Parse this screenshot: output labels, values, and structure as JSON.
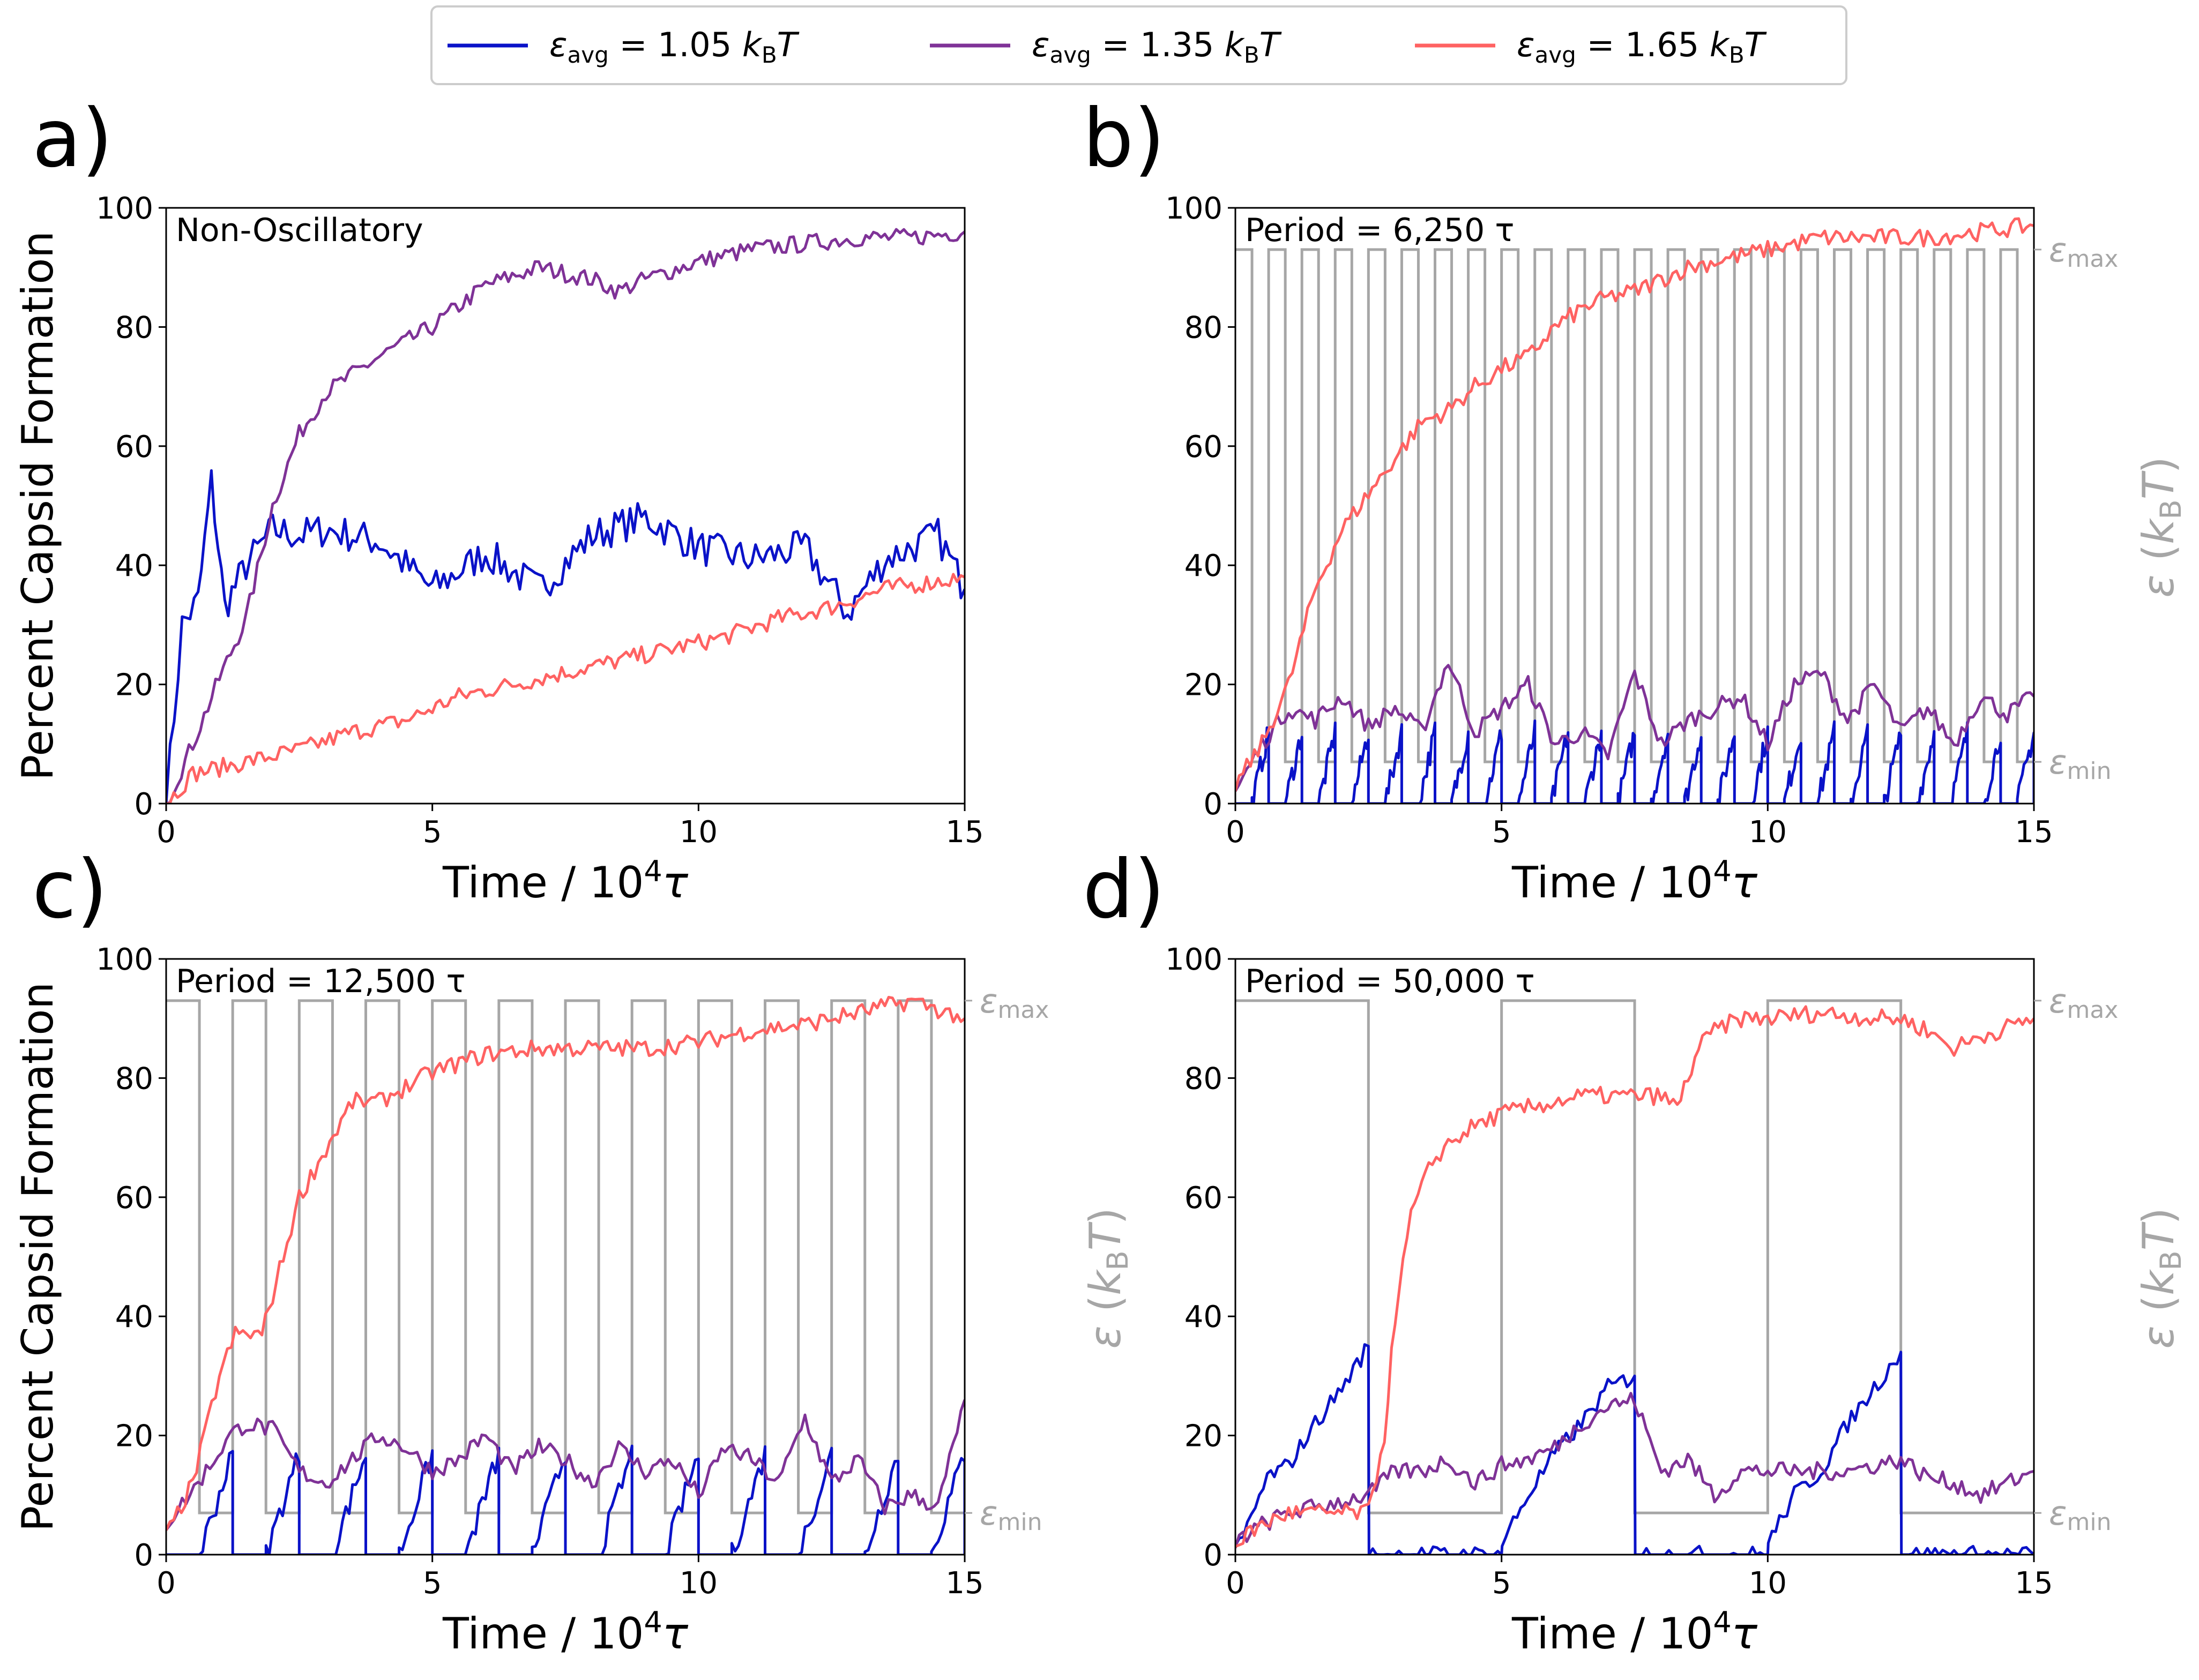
{
  "legend": {
    "entries": [
      {
        "label": "ε_avg = 1.05 k_BT",
        "symbol": "ε",
        "sub": "avg",
        "rest": " = 1.05 ",
        "k": "k",
        "ksub": "B",
        "T": "T",
        "color": "#0a12c8"
      },
      {
        "label": "ε_avg = 1.35 k_BT",
        "symbol": "ε",
        "sub": "avg",
        "rest": " = 1.35 ",
        "k": "k",
        "ksub": "B",
        "T": "T",
        "color": "#7f3297"
      },
      {
        "label": "ε_avg = 1.65 k_BT",
        "symbol": "ε",
        "sub": "avg",
        "rest": " = 1.65 ",
        "k": "k",
        "ksub": "B",
        "T": "T",
        "color": "#ff6262"
      }
    ]
  },
  "common": {
    "xlabel_main": "Time / 10",
    "xlabel_exp": "4",
    "xlabel_tau": "τ",
    "ylabel": "Percent Capsid Formation",
    "right_label_eps": "ε",
    "right_label_k": "k",
    "right_label_ksub": "B",
    "right_label_T": "T",
    "eps_max_sym": "ε",
    "eps_max_sub": "max",
    "eps_min_sym": "ε",
    "eps_min_sub": "min",
    "square_wave_color": "#a6a6a6",
    "x_ticks": [
      0,
      5,
      10,
      15
    ],
    "y_ticks": [
      0,
      20,
      40,
      60,
      80,
      100
    ]
  },
  "chart_data": [
    {
      "type": "line",
      "panel": "a)",
      "title": "",
      "annotation": "Non-Oscillatory",
      "xlabel": "Time / 10^4 τ",
      "ylabel": "Percent Capsid Formation",
      "xlim": [
        0,
        15
      ],
      "ylim": [
        0,
        100
      ],
      "period": null,
      "series": [
        {
          "name": "ε_avg = 1.05 k_BT",
          "x": [
            0,
            0.3,
            0.6,
            0.85,
            1.1,
            1.5,
            2.0,
            2.5,
            3.0,
            4.0,
            5.0,
            6.0,
            7.0,
            8.0,
            9.0,
            10.0,
            11.0,
            12.0,
            12.8,
            13.5,
            14.5,
            15.0
          ],
          "y": [
            0,
            30,
            34,
            54,
            33,
            40,
            46,
            45,
            46,
            44,
            36,
            42,
            36,
            45,
            48,
            43,
            41,
            43,
            32,
            41,
            45,
            36
          ]
        },
        {
          "name": "ε_avg = 1.35 k_BT",
          "x": [
            0,
            0.5,
            1.0,
            1.5,
            2.0,
            2.5,
            3.0,
            4.0,
            5.0,
            6.0,
            7.0,
            8.0,
            8.5,
            9.0,
            10.0,
            11.0,
            12.0,
            13.0,
            14.0,
            15.0
          ],
          "y": [
            0,
            10,
            21,
            31,
            50,
            62,
            69,
            75,
            80,
            87,
            90,
            88,
            86,
            88,
            91,
            93,
            94,
            95,
            95,
            96
          ]
        },
        {
          "name": "ε_avg = 1.65 k_BT",
          "x": [
            0,
            0.5,
            1.5,
            2.5,
            3.5,
            4.5,
            5.5,
            6.5,
            7.5,
            8.5,
            9.5,
            10.5,
            11.5,
            12.5,
            13.5,
            15.0
          ],
          "y": [
            0,
            5,
            7,
            9,
            12,
            14,
            18,
            20,
            22,
            24,
            26,
            28,
            31,
            33,
            36,
            38
          ]
        }
      ]
    },
    {
      "type": "line",
      "panel": "b)",
      "title": "",
      "annotation": "Period = 6,250 τ",
      "xlabel": "Time / 10^4 τ",
      "ylabel": "",
      "right_ylabel": "ε (k_BT)",
      "xlim": [
        0,
        15
      ],
      "ylim": [
        0,
        100
      ],
      "period": 0.625,
      "eps_levels": [
        7,
        93
      ],
      "series": [
        {
          "name": "ε_avg = 1.05 k_BT",
          "type": "sawtooth",
          "amplitude": 12,
          "color": "#0a12c8"
        },
        {
          "name": "ε_avg = 1.35 k_BT",
          "x": [
            0,
            0.5,
            1.0,
            1.5,
            2.0,
            2.5,
            3.0,
            3.5,
            4.0,
            4.5,
            5.0,
            5.5,
            6.0,
            6.5,
            7.0,
            7.5,
            8.0,
            8.5,
            9.0,
            9.5,
            10.0,
            10.5,
            11.0,
            11.5,
            12.0,
            12.5,
            13.0,
            13.5,
            14.0,
            14.5,
            15.0
          ],
          "y": [
            2,
            10,
            16,
            14,
            18,
            13,
            16,
            12,
            24,
            12,
            16,
            20,
            10,
            12,
            8,
            22,
            10,
            14,
            16,
            18,
            10,
            20,
            22,
            14,
            20,
            12,
            16,
            10,
            18,
            15,
            18
          ]
        },
        {
          "name": "ε_avg = 1.65 k_BT",
          "x": [
            0,
            0.5,
            1.0,
            1.5,
            2.0,
            2.5,
            3.0,
            3.5,
            4.0,
            4.5,
            5.0,
            5.5,
            6.0,
            6.5,
            7.0,
            7.5,
            8.0,
            8.5,
            9.0,
            9.5,
            10.0,
            11.0,
            12.0,
            13.0,
            14.0,
            15.0
          ],
          "y": [
            3,
            10,
            20,
            36,
            46,
            52,
            58,
            64,
            66,
            70,
            73,
            75,
            80,
            83,
            85,
            86,
            88,
            90,
            91,
            92,
            93,
            95,
            95,
            95,
            96,
            97
          ]
        }
      ]
    },
    {
      "type": "line",
      "panel": "c)",
      "title": "",
      "annotation": "Period = 12,500 τ",
      "xlabel": "Time / 10^4 τ",
      "ylabel": "Percent Capsid Formation",
      "right_ylabel": "ε (k_BT)",
      "xlim": [
        0,
        15
      ],
      "ylim": [
        0,
        100
      ],
      "period": 1.25,
      "eps_levels": [
        7,
        93
      ],
      "series": [
        {
          "name": "ε_avg = 1.05 k_BT",
          "type": "sawtooth",
          "amplitude": 17,
          "color": "#0a12c8"
        },
        {
          "name": "ε_avg = 1.35 k_BT",
          "x": [
            0,
            0.6,
            1.2,
            1.5,
            2.0,
            2.5,
            3.0,
            3.5,
            4.0,
            4.5,
            5.0,
            5.5,
            6.0,
            6.5,
            7.0,
            7.5,
            8.0,
            8.5,
            9.0,
            9.5,
            10.0,
            10.5,
            11.0,
            11.5,
            12.0,
            12.5,
            13.0,
            13.5,
            14.0,
            14.5,
            15.0
          ],
          "y": [
            5,
            12,
            20,
            22,
            21,
            14,
            12,
            16,
            20,
            18,
            14,
            16,
            20,
            14,
            18,
            16,
            12,
            18,
            14,
            16,
            10,
            18,
            16,
            12,
            23,
            12,
            16,
            8,
            10,
            8,
            26
          ]
        },
        {
          "name": "ε_avg = 1.65 k_BT",
          "x": [
            0,
            0.5,
            1.0,
            1.3,
            1.8,
            2.2,
            2.5,
            3.0,
            3.5,
            4.0,
            5.0,
            6.0,
            7.0,
            8.0,
            9.0,
            10.0,
            11.0,
            12.0,
            13.0,
            14.0,
            15.0
          ],
          "y": [
            3,
            12,
            30,
            37,
            37,
            50,
            60,
            68,
            76,
            76,
            81,
            84,
            85,
            85,
            85,
            86,
            88,
            89,
            91,
            93,
            90
          ]
        }
      ]
    },
    {
      "type": "line",
      "panel": "d)",
      "title": "",
      "annotation": "Period = 50,000 τ",
      "xlabel": "Time / 10^4 τ",
      "ylabel": "",
      "right_ylabel": "ε (k_BT)",
      "xlim": [
        0,
        15
      ],
      "ylim": [
        0,
        100
      ],
      "period": 5,
      "eps_levels": [
        7,
        93
      ],
      "series": [
        {
          "name": "ε_avg = 1.05 k_BT",
          "x": [
            0,
            0.3,
            0.6,
            1.0,
            1.5,
            2.0,
            2.5,
            2.51,
            3.0,
            5.0,
            5.01,
            5.5,
            6.0,
            6.5,
            7.0,
            7.5,
            7.51,
            8.0,
            10.0,
            10.01,
            10.5,
            11.0,
            11.5,
            12.0,
            12.5,
            12.51,
            13.0,
            15.0
          ],
          "y": [
            0,
            6,
            13,
            15,
            22,
            28,
            35,
            0,
            0,
            0,
            2,
            10,
            17,
            22,
            28,
            30,
            0,
            0,
            0,
            2,
            10,
            14,
            22,
            28,
            34,
            0,
            0,
            0
          ]
        },
        {
          "name": "ε_avg = 1.35 k_BT",
          "x": [
            0,
            0.5,
            1.0,
            1.5,
            2.0,
            2.5,
            3.0,
            3.5,
            4.0,
            4.5,
            5.0,
            5.5,
            6.0,
            6.5,
            7.0,
            7.5,
            8.0,
            8.5,
            9.0,
            9.5,
            10.0,
            10.5,
            11.0,
            11.5,
            12.0,
            12.5,
            13.0,
            13.5,
            14.0,
            14.5,
            15.0
          ],
          "y": [
            2,
            5,
            7,
            8,
            9,
            10,
            14,
            14,
            16,
            12,
            15,
            16,
            18,
            22,
            25,
            26,
            14,
            16,
            10,
            14,
            14,
            14,
            14,
            14,
            15,
            16,
            13,
            12,
            10,
            12,
            14
          ]
        },
        {
          "name": "ε_avg = 1.65 k_BT",
          "x": [
            0,
            0.5,
            1.0,
            1.5,
            2.0,
            2.5,
            2.8,
            3.0,
            3.3,
            3.7,
            4.0,
            4.5,
            5.0,
            5.5,
            6.0,
            6.5,
            7.0,
            7.5,
            8.0,
            8.3,
            8.7,
            9.0,
            9.5,
            10.0,
            11.0,
            12.0,
            12.5,
            13.0,
            13.5,
            14.0,
            15.0
          ],
          "y": [
            2,
            5,
            7,
            7,
            7,
            7,
            20,
            40,
            57,
            66,
            69,
            72,
            74,
            75,
            76,
            77,
            77,
            77,
            77,
            75,
            85,
            88,
            90,
            90,
            91,
            90,
            90,
            88,
            85,
            87,
            90
          ]
        }
      ]
    }
  ]
}
